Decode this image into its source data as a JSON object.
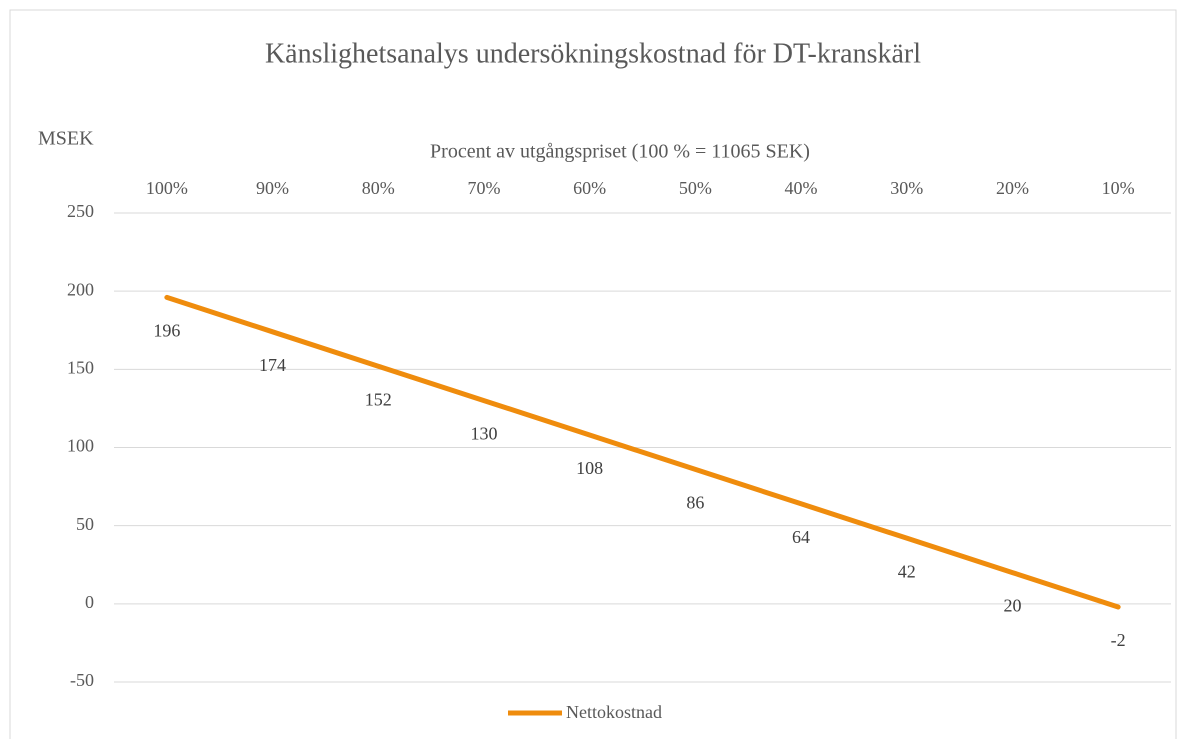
{
  "chart_data": {
    "type": "line",
    "title": "Känslighetsanalys undersökningskostnad för DT-kranskärl",
    "y_axis_label": "MSEK",
    "x_axis_label": "Procent av utgångspriset (100 % = 11065 SEK)",
    "categories": [
      "100%",
      "90%",
      "80%",
      "70%",
      "60%",
      "50%",
      "40%",
      "30%",
      "20%",
      "10%"
    ],
    "series": [
      {
        "name": "Nettokostnad",
        "color": "#ef8c0d",
        "values": [
          196,
          174,
          152,
          130,
          108,
          86,
          64,
          42,
          20,
          -2
        ]
      }
    ],
    "ylim": [
      -50,
      250
    ],
    "yticks": [
      -50,
      0,
      50,
      100,
      150,
      200,
      250
    ],
    "grid": true,
    "legend": "bottom"
  }
}
